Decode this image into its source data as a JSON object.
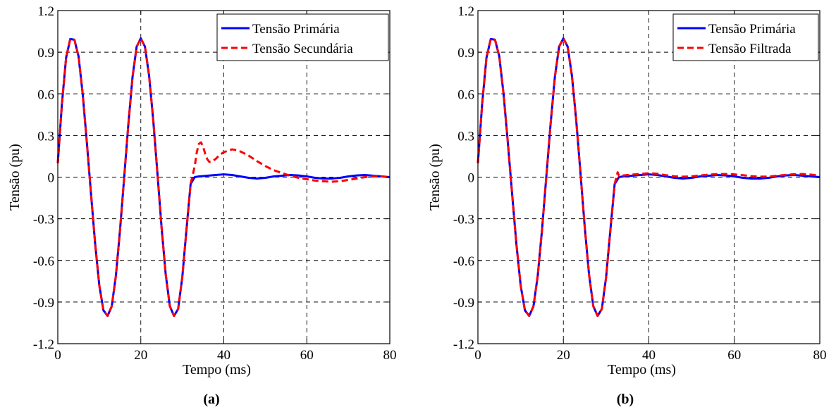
{
  "chart_data": [
    {
      "type": "line",
      "caption": "(a)",
      "xlabel": "Tempo (ms)",
      "ylabel": "Tensão (pu)",
      "xlim": [
        0,
        80
      ],
      "ylim": [
        -1.2,
        1.2
      ],
      "xticks": [
        0,
        20,
        40,
        60,
        80
      ],
      "yticks": [
        -1.2,
        -0.9,
        -0.6,
        -0.3,
        0,
        0.3,
        0.6,
        0.9,
        1.2
      ],
      "xtick_labels": [
        "0",
        "20",
        "40",
        "60",
        "80"
      ],
      "ytick_labels": [
        "-1.2",
        "-0.9",
        "-0.6",
        "-0.3",
        "0",
        "0.3",
        "0.6",
        "0.9",
        "1.2"
      ],
      "grid": true,
      "legend_position": "top-right",
      "series": [
        {
          "name": "Tensão Primária",
          "color": "#0000ff",
          "style": "solid",
          "x": [
            0,
            1,
            2,
            3,
            4,
            5,
            6,
            7,
            8,
            9,
            10,
            11,
            12,
            13,
            14,
            15,
            16,
            17,
            18,
            19,
            20,
            21,
            22,
            23,
            24,
            25,
            26,
            27,
            28,
            29,
            30,
            31,
            32,
            33,
            34,
            36,
            38,
            40,
            42,
            44,
            46,
            48,
            50,
            52,
            54,
            56,
            58,
            60,
            62,
            64,
            66,
            68,
            70,
            72,
            74,
            76,
            78,
            80
          ],
          "y": [
            0.1,
            0.53,
            0.86,
            0.995,
            0.99,
            0.87,
            0.6,
            0.25,
            -0.12,
            -0.48,
            -0.78,
            -0.96,
            -1.0,
            -0.93,
            -0.71,
            -0.38,
            0.0,
            0.38,
            0.72,
            0.94,
            1.0,
            0.94,
            0.73,
            0.41,
            0.03,
            -0.36,
            -0.7,
            -0.93,
            -1.0,
            -0.95,
            -0.72,
            -0.38,
            -0.05,
            0.0,
            0.005,
            0.01,
            0.015,
            0.02,
            0.015,
            0.005,
            -0.005,
            -0.01,
            -0.005,
            0.005,
            0.01,
            0.015,
            0.012,
            0.005,
            -0.005,
            -0.01,
            -0.01,
            -0.005,
            0.005,
            0.012,
            0.015,
            0.01,
            0.005,
            0.0
          ]
        },
        {
          "name": "Tensão Secundária",
          "color": "#ff0000",
          "style": "dashed",
          "x": [
            0,
            1,
            2,
            3,
            4,
            5,
            6,
            7,
            8,
            9,
            10,
            11,
            12,
            13,
            14,
            15,
            16,
            17,
            18,
            19,
            20,
            21,
            22,
            23,
            24,
            25,
            26,
            27,
            28,
            29,
            30,
            31,
            32,
            33,
            33.5,
            34,
            34.5,
            35,
            35.5,
            36,
            36.5,
            37,
            38,
            39,
            40,
            41,
            42,
            43,
            44,
            45,
            46,
            47,
            48,
            50,
            52,
            54,
            56,
            58,
            60,
            62,
            64,
            66,
            68,
            70,
            72,
            74,
            76,
            78,
            80
          ],
          "y": [
            0.1,
            0.53,
            0.86,
            0.995,
            0.99,
            0.87,
            0.6,
            0.25,
            -0.12,
            -0.48,
            -0.78,
            -0.96,
            -1.0,
            -0.93,
            -0.71,
            -0.38,
            0.0,
            0.38,
            0.72,
            0.94,
            1.0,
            0.94,
            0.73,
            0.41,
            0.03,
            -0.36,
            -0.7,
            -0.93,
            -1.0,
            -0.95,
            -0.72,
            -0.38,
            -0.05,
            0.08,
            0.18,
            0.24,
            0.25,
            0.22,
            0.17,
            0.13,
            0.11,
            0.11,
            0.13,
            0.16,
            0.18,
            0.19,
            0.2,
            0.195,
            0.185,
            0.17,
            0.155,
            0.135,
            0.115,
            0.08,
            0.05,
            0.03,
            0.01,
            -0.005,
            -0.015,
            -0.025,
            -0.03,
            -0.033,
            -0.03,
            -0.02,
            -0.01,
            0.0,
            0.005,
            0.005,
            0.0
          ]
        }
      ]
    },
    {
      "type": "line",
      "caption": "(b)",
      "xlabel": "Tempo (ms)",
      "ylabel": "Tensão (pu)",
      "xlim": [
        0,
        80
      ],
      "ylim": [
        -1.2,
        1.2
      ],
      "xticks": [
        0,
        20,
        40,
        60,
        80
      ],
      "yticks": [
        -1.2,
        -0.9,
        -0.6,
        -0.3,
        0,
        0.3,
        0.6,
        0.9,
        1.2
      ],
      "xtick_labels": [
        "0",
        "20",
        "40",
        "60",
        "80"
      ],
      "ytick_labels": [
        "-1.2",
        "-0.9",
        "-0.6",
        "-0.3",
        "0",
        "0.3",
        "0.6",
        "0.9",
        "1.2"
      ],
      "grid": true,
      "legend_position": "top-right",
      "series": [
        {
          "name": "Tensão Primária",
          "color": "#0000ff",
          "style": "solid",
          "x": [
            0,
            1,
            2,
            3,
            4,
            5,
            6,
            7,
            8,
            9,
            10,
            11,
            12,
            13,
            14,
            15,
            16,
            17,
            18,
            19,
            20,
            21,
            22,
            23,
            24,
            25,
            26,
            27,
            28,
            29,
            30,
            31,
            32,
            33,
            34,
            36,
            38,
            40,
            42,
            44,
            46,
            48,
            50,
            52,
            54,
            56,
            58,
            60,
            62,
            64,
            66,
            68,
            70,
            72,
            74,
            76,
            78,
            80
          ],
          "y": [
            0.1,
            0.53,
            0.86,
            0.995,
            0.99,
            0.87,
            0.6,
            0.25,
            -0.12,
            -0.48,
            -0.78,
            -0.96,
            -1.0,
            -0.93,
            -0.71,
            -0.38,
            0.0,
            0.38,
            0.72,
            0.94,
            1.0,
            0.94,
            0.73,
            0.41,
            0.03,
            -0.36,
            -0.7,
            -0.93,
            -1.0,
            -0.95,
            -0.72,
            -0.38,
            -0.05,
            0.0,
            0.005,
            0.01,
            0.015,
            0.02,
            0.015,
            0.005,
            -0.005,
            -0.01,
            -0.005,
            0.005,
            0.01,
            0.015,
            0.012,
            0.005,
            -0.005,
            -0.01,
            -0.01,
            -0.005,
            0.005,
            0.012,
            0.015,
            0.01,
            0.005,
            0.0
          ]
        },
        {
          "name": "Tensão Filtrada",
          "color": "#ff0000",
          "style": "dashed",
          "x": [
            0,
            1,
            2,
            3,
            4,
            5,
            6,
            7,
            8,
            9,
            10,
            11,
            12,
            13,
            14,
            15,
            16,
            17,
            18,
            19,
            20,
            21,
            22,
            23,
            24,
            25,
            26,
            27,
            28,
            29,
            30,
            31,
            32,
            32.7,
            33,
            34,
            36,
            38,
            40,
            42,
            44,
            46,
            48,
            50,
            52,
            54,
            56,
            58,
            60,
            62,
            64,
            66,
            68,
            70,
            72,
            74,
            76,
            78,
            80
          ],
          "y": [
            0.1,
            0.53,
            0.86,
            0.995,
            0.99,
            0.87,
            0.6,
            0.25,
            -0.12,
            -0.48,
            -0.78,
            -0.96,
            -1.0,
            -0.93,
            -0.71,
            -0.38,
            0.0,
            0.38,
            0.72,
            0.94,
            1.0,
            0.94,
            0.73,
            0.41,
            0.03,
            -0.36,
            -0.7,
            -0.93,
            -1.0,
            -0.95,
            -0.72,
            -0.38,
            -0.05,
            0.035,
            0.01,
            0.012,
            0.018,
            0.023,
            0.028,
            0.024,
            0.014,
            0.006,
            0.003,
            0.006,
            0.012,
            0.018,
            0.022,
            0.022,
            0.02,
            0.014,
            0.007,
            0.003,
            0.004,
            0.01,
            0.016,
            0.021,
            0.022,
            0.018,
            0.012
          ]
        }
      ]
    }
  ]
}
